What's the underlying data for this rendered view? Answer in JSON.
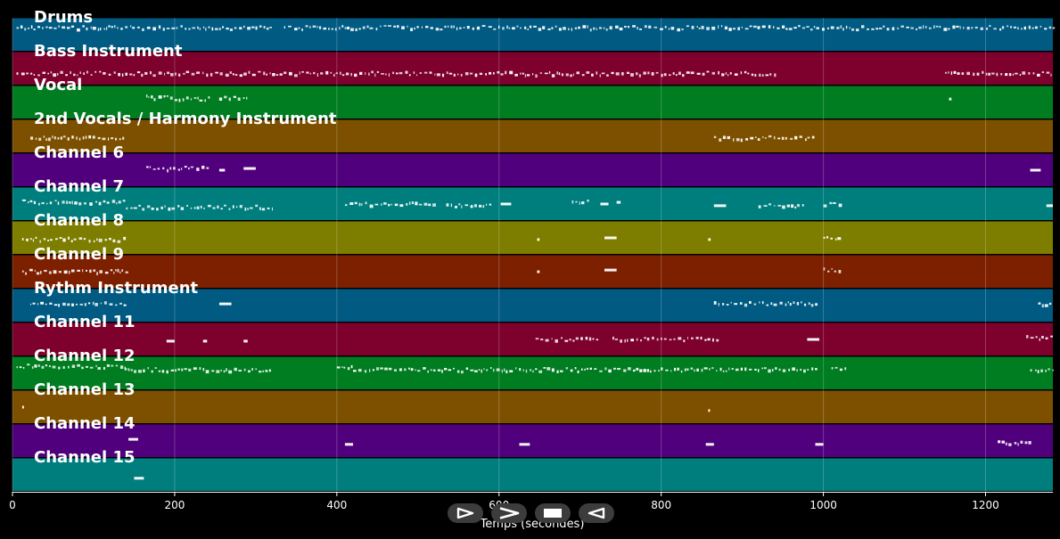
{
  "chart_data": {
    "type": "piano-roll",
    "xlabel": "Temps (secondes)",
    "xlim": [
      0,
      1283
    ],
    "x_ticks": [
      0,
      200,
      400,
      600,
      800,
      1000,
      1200
    ],
    "grid": true,
    "tracks": [
      {
        "name": "Drums",
        "color": "#005a82",
        "notes": [
          [
            5,
            320,
            0.3
          ],
          [
            335,
            1283,
            0.3
          ]
        ]
      },
      {
        "name": "Bass Instrument",
        "color": "#7d002d",
        "notes": [
          [
            5,
            940,
            0.65
          ],
          [
            1150,
            1283,
            0.65
          ]
        ]
      },
      {
        "name": "Vocal",
        "color": "#007d20",
        "notes": [
          [
            165,
            195,
            0.35
          ],
          [
            200,
            245,
            0.4
          ],
          [
            255,
            290,
            0.35
          ],
          [
            1155,
            1158,
            0.4
          ]
        ]
      },
      {
        "name": "2nd Vocals / Harmony Instrument",
        "color": "#7d5000",
        "notes": [
          [
            22,
            140,
            0.55
          ],
          [
            865,
            990,
            0.55
          ]
        ]
      },
      {
        "name": "Channel 6",
        "color": "#50007d",
        "notes": [
          [
            165,
            240,
            0.45
          ],
          [
            255,
            262,
            0.5
          ],
          [
            285,
            300,
            0.45
          ],
          [
            1255,
            1268,
            0.5
          ]
        ]
      },
      {
        "name": "Channel 7",
        "color": "#007d7d",
        "notes": [
          [
            12,
            140,
            0.45
          ],
          [
            140,
            320,
            0.6
          ],
          [
            410,
            520,
            0.5
          ],
          [
            535,
            590,
            0.55
          ],
          [
            602,
            615,
            0.5
          ],
          [
            690,
            710,
            0.45
          ],
          [
            725,
            735,
            0.5
          ],
          [
            745,
            750,
            0.45
          ],
          [
            865,
            880,
            0.55
          ],
          [
            920,
            975,
            0.55
          ],
          [
            1000,
            1020,
            0.5
          ],
          [
            1275,
            1283,
            0.55
          ]
        ]
      },
      {
        "name": "Channel 8",
        "color": "#7d7d00",
        "notes": [
          [
            12,
            140,
            0.55
          ],
          [
            647,
            650,
            0.55
          ],
          [
            730,
            745,
            0.5
          ],
          [
            858,
            861,
            0.55
          ],
          [
            1000,
            1020,
            0.5
          ]
        ]
      },
      {
        "name": "Channel 9",
        "color": "#7d2000",
        "notes": [
          [
            12,
            140,
            0.5
          ],
          [
            647,
            650,
            0.5
          ],
          [
            730,
            745,
            0.45
          ],
          [
            1000,
            1020,
            0.45
          ]
        ]
      },
      {
        "name": "Rythm Instrument",
        "color": "#005a82",
        "notes": [
          [
            22,
            140,
            0.45
          ],
          [
            255,
            270,
            0.45
          ],
          [
            865,
            990,
            0.45
          ],
          [
            1265,
            1283,
            0.45
          ]
        ]
      },
      {
        "name": "Channel 11",
        "color": "#7d002d",
        "notes": [
          [
            190,
            200,
            0.55
          ],
          [
            235,
            240,
            0.55
          ],
          [
            285,
            290,
            0.55
          ],
          [
            645,
            720,
            0.5
          ],
          [
            740,
            870,
            0.5
          ],
          [
            980,
            995,
            0.5
          ],
          [
            1250,
            1283,
            0.45
          ]
        ]
      },
      {
        "name": "Channel 12",
        "color": "#007d20",
        "notes": [
          [
            5,
            140,
            0.3
          ],
          [
            140,
            320,
            0.4
          ],
          [
            400,
            420,
            0.3
          ],
          [
            420,
            990,
            0.4
          ],
          [
            1010,
            1030,
            0.35
          ],
          [
            1255,
            1283,
            0.4
          ]
        ]
      },
      {
        "name": "Channel 13",
        "color": "#7d5000",
        "notes": [
          [
            12,
            14,
            0.5
          ],
          [
            858,
            860,
            0.6
          ]
        ]
      },
      {
        "name": "Channel 14",
        "color": "#50007d",
        "notes": [
          [
            143,
            155,
            0.45
          ],
          [
            410,
            420,
            0.6
          ],
          [
            625,
            638,
            0.6
          ],
          [
            855,
            865,
            0.6
          ],
          [
            990,
            1000,
            0.6
          ],
          [
            1215,
            1255,
            0.55
          ]
        ]
      },
      {
        "name": "Channel 15",
        "color": "#007d7d",
        "notes": [
          [
            150,
            162,
            0.6
          ]
        ]
      }
    ]
  },
  "controls": [
    {
      "name": "play-icon"
    },
    {
      "name": "forward-icon"
    },
    {
      "name": "stop-icon"
    },
    {
      "name": "rewind-icon"
    }
  ]
}
